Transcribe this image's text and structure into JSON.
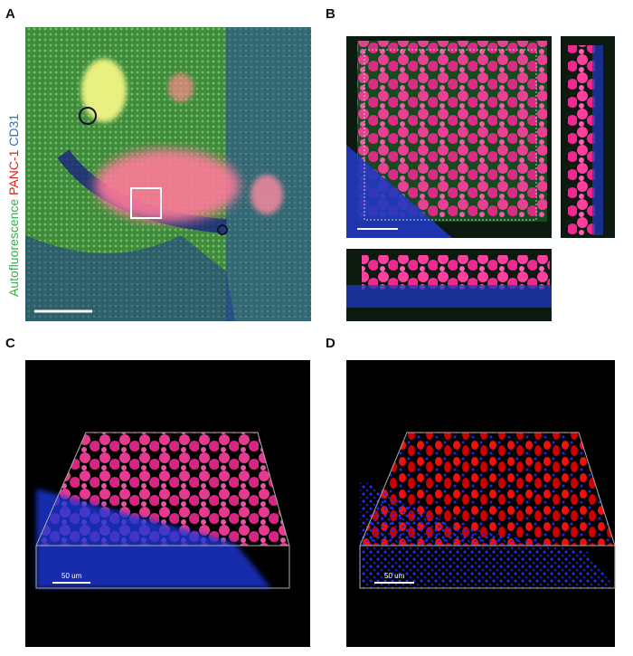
{
  "panels": [
    {
      "label": "A",
      "channel_labels": [
        "Autofluorescence",
        "PANC-1",
        "CD31"
      ]
    },
    {
      "label": "B"
    },
    {
      "label": "C",
      "scale_bar": "50 um"
    },
    {
      "label": "D",
      "scale_bar": "50 um"
    }
  ]
}
